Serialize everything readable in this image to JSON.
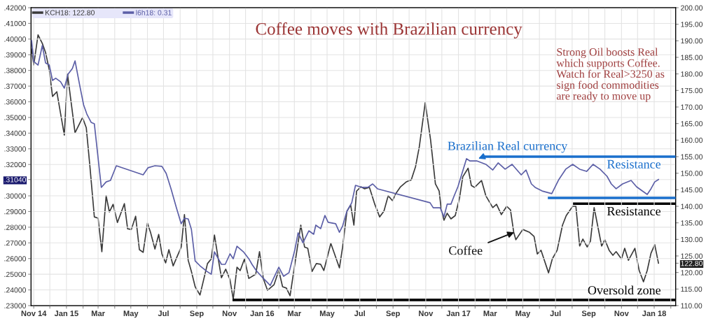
{
  "chart_data": {
    "type": "line",
    "title": "Coffee moves with Brazilian currency",
    "annotations": [
      "Strong Oil boosts Real\nwhich supports Coffee.\nWatch for Real>3250 as\nsign food commodities\nare ready to move up",
      {
        "text": "Brazilian Real currency",
        "x": "2017-02-07",
        "y": 0.3237
      },
      {
        "text": "Coffee",
        "x": "2017-04-15",
        "y": 0.2768
      }
    ],
    "xlim": [
      "2014-10-27",
      "2018-02-10"
    ],
    "xticks": [
      {
        "value": "2014-11-01",
        "label": "Nov 14"
      },
      {
        "value": "2014-12-01",
        "label": null
      },
      {
        "value": "2015-01-01",
        "label": "Jan 15"
      },
      {
        "value": "2015-02-01",
        "label": null
      },
      {
        "value": "2015-03-01",
        "label": "Mar"
      },
      {
        "value": "2015-04-01",
        "label": null
      },
      {
        "value": "2015-05-01",
        "label": "May"
      },
      {
        "value": "2015-06-01",
        "label": null
      },
      {
        "value": "2015-07-01",
        "label": "Jul"
      },
      {
        "value": "2015-08-01",
        "label": null
      },
      {
        "value": "2015-09-01",
        "label": "Sep"
      },
      {
        "value": "2015-10-01",
        "label": null
      },
      {
        "value": "2015-11-01",
        "label": "Nov"
      },
      {
        "value": "2015-12-01",
        "label": null
      },
      {
        "value": "2016-01-01",
        "label": "Jan 16"
      },
      {
        "value": "2016-02-01",
        "label": null
      },
      {
        "value": "2016-03-01",
        "label": "Mar"
      },
      {
        "value": "2016-04-01",
        "label": null
      },
      {
        "value": "2016-05-01",
        "label": "May"
      },
      {
        "value": "2016-06-01",
        "label": null
      },
      {
        "value": "2016-07-01",
        "label": "Jul"
      },
      {
        "value": "2016-08-01",
        "label": null
      },
      {
        "value": "2016-09-01",
        "label": "Sep"
      },
      {
        "value": "2016-10-01",
        "label": null
      },
      {
        "value": "2016-11-01",
        "label": "Nov"
      },
      {
        "value": "2016-12-01",
        "label": null
      },
      {
        "value": "2017-01-01",
        "label": "Jan 17"
      },
      {
        "value": "2017-02-01",
        "label": null
      },
      {
        "value": "2017-03-01",
        "label": "Mar"
      },
      {
        "value": "2017-04-01",
        "label": null
      },
      {
        "value": "2017-05-01",
        "label": "May"
      },
      {
        "value": "2017-06-01",
        "label": null
      },
      {
        "value": "2017-07-01",
        "label": "Jul"
      },
      {
        "value": "2017-08-01",
        "label": null
      },
      {
        "value": "2017-09-01",
        "label": "Sep"
      },
      {
        "value": "2017-10-01",
        "label": null
      },
      {
        "value": "2017-11-01",
        "label": "Nov"
      },
      {
        "value": "2017-12-01",
        "label": null
      },
      {
        "value": "2018-01-01",
        "label": "Jan 18"
      },
      {
        "value": "2018-02-01",
        "label": null
      }
    ],
    "ylim": [
      0.23,
      0.42
    ],
    "yticks": [
      {
        "value": 0.23,
        "label": ".23000"
      },
      {
        "value": 0.24,
        "label": ".24000"
      },
      {
        "value": 0.25,
        "label": ".25000"
      },
      {
        "value": 0.26,
        "label": ".26000"
      },
      {
        "value": 0.27,
        "label": ".27000"
      },
      {
        "value": 0.28,
        "label": ".28000"
      },
      {
        "value": 0.29,
        "label": ".29000"
      },
      {
        "value": 0.3,
        "label": ".30000"
      },
      {
        "value": 0.3104,
        "label": ".31040"
      },
      {
        "value": 0.32,
        "label": ".32000"
      },
      {
        "value": 0.33,
        "label": ".33000"
      },
      {
        "value": 0.34,
        "label": ".34000"
      },
      {
        "value": 0.35,
        "label": ".35000"
      },
      {
        "value": 0.36,
        "label": ".36000"
      },
      {
        "value": 0.37,
        "label": ".37000"
      },
      {
        "value": 0.38,
        "label": ".38000"
      },
      {
        "value": 0.39,
        "label": ".39000"
      },
      {
        "value": 0.4,
        "label": ".40000"
      },
      {
        "value": 0.41,
        "label": ".41000"
      },
      {
        "value": 0.42,
        "label": ".42000"
      }
    ],
    "y2lim": [
      110,
      200
    ],
    "y2ticks": [
      {
        "value": 110,
        "label": "110.00"
      },
      {
        "value": 115,
        "label": "115.00"
      },
      {
        "value": 120,
        "label": "120.00"
      },
      {
        "value": 122.8,
        "label": "122.80"
      },
      {
        "value": 125,
        "label": "125.00"
      },
      {
        "value": 130,
        "label": "130.00"
      },
      {
        "value": 135,
        "label": "135.00"
      },
      {
        "value": 140,
        "label": "140.00"
      },
      {
        "value": 145,
        "label": "145.00"
      },
      {
        "value": 150,
        "label": "150.00"
      },
      {
        "value": 155,
        "label": "155.00"
      },
      {
        "value": 160,
        "label": "160.00"
      },
      {
        "value": 165,
        "label": "165.00"
      },
      {
        "value": 170,
        "label": "170.00"
      },
      {
        "value": 175,
        "label": "175.00"
      },
      {
        "value": 180,
        "label": "180.00"
      },
      {
        "value": 185,
        "label": "185.00"
      },
      {
        "value": 190,
        "label": "190.00"
      },
      {
        "value": 195,
        "label": "195.00"
      },
      {
        "value": 200,
        "label": "200.00"
      }
    ],
    "grid": true,
    "legend": "top left",
    "series": [
      {
        "name": "KCH18: 122.80",
        "type": "line",
        "axis": "y2",
        "color": "#3a3a3a",
        "x": [
          "2014-10-28",
          "2014-11-01",
          "2014-11-09",
          "2014-11-17",
          "2014-11-23",
          "2014-11-30",
          "2014-12-06",
          "2014-12-14",
          "2014-12-28",
          "2015-01-03",
          "2015-01-17",
          "2015-01-31",
          "2015-02-07",
          "2015-02-14",
          "2015-02-22",
          "2015-03-01",
          "2015-03-08",
          "2015-03-16",
          "2015-03-22",
          "2015-03-29",
          "2015-04-06",
          "2015-04-19",
          "2015-04-25",
          "2015-05-02",
          "2015-05-10",
          "2015-05-17",
          "2015-05-24",
          "2015-06-01",
          "2015-06-07",
          "2015-06-15",
          "2015-06-22",
          "2015-06-28",
          "2015-07-05",
          "2015-07-11",
          "2015-07-19",
          "2015-08-03",
          "2015-08-09",
          "2015-08-16",
          "2015-08-22",
          "2015-08-29",
          "2015-09-07",
          "2015-09-21",
          "2015-09-28",
          "2015-10-04",
          "2015-10-10",
          "2015-10-17",
          "2015-10-25",
          "2015-11-02",
          "2015-11-08",
          "2015-11-15",
          "2015-11-21",
          "2015-11-29",
          "2015-12-07",
          "2015-12-20",
          "2015-12-27",
          "2016-01-03",
          "2016-01-11",
          "2016-01-23",
          "2016-02-01",
          "2016-02-08",
          "2016-02-15",
          "2016-02-22",
          "2016-03-02",
          "2016-03-13",
          "2016-03-20",
          "2016-03-26",
          "2016-04-03",
          "2016-04-11",
          "2016-04-19",
          "2016-04-25",
          "2016-05-08",
          "2016-05-24",
          "2016-05-30",
          "2016-06-07",
          "2016-06-14",
          "2016-06-20",
          "2016-06-25",
          "2016-07-03",
          "2016-07-10",
          "2016-07-19",
          "2016-07-29",
          "2016-08-07",
          "2016-08-15",
          "2016-08-23",
          "2016-08-31",
          "2016-09-06",
          "2016-09-15",
          "2016-09-26",
          "2016-10-05",
          "2016-10-13",
          "2016-10-20",
          "2016-10-31",
          "2016-11-10",
          "2016-11-19",
          "2016-11-26",
          "2016-11-30",
          "2016-12-05",
          "2016-12-11",
          "2016-12-18",
          "2016-12-26",
          "2017-01-03",
          "2017-01-09",
          "2017-01-19",
          "2017-01-25",
          "2017-01-31",
          "2017-02-13",
          "2017-02-21",
          "2017-03-06",
          "2017-03-13",
          "2017-03-22",
          "2017-04-01",
          "2017-04-08",
          "2017-04-14",
          "2017-04-18",
          "2017-05-01",
          "2017-05-13",
          "2017-05-22",
          "2017-05-28",
          "2017-06-04",
          "2017-06-18",
          "2017-06-25",
          "2017-07-04",
          "2017-07-14",
          "2017-07-21",
          "2017-08-02",
          "2017-08-08",
          "2017-08-15",
          "2017-08-21",
          "2017-08-29",
          "2017-09-04",
          "2017-09-11",
          "2017-09-25",
          "2017-10-01",
          "2017-10-09",
          "2017-10-16",
          "2017-10-22",
          "2017-11-01",
          "2017-11-07",
          "2017-11-14",
          "2017-11-26",
          "2017-12-04",
          "2017-12-12",
          "2017-12-19",
          "2017-12-26",
          "2018-01-02",
          "2018-01-09"
        ],
        "values": [
          187.5,
          182.7,
          191.8,
          189.2,
          186.5,
          181.2,
          173.2,
          174.6,
          161.5,
          179.9,
          162.2,
          166.8,
          163.7,
          151.6,
          136.8,
          136.4,
          126.3,
          143.2,
          138.3,
          140.6,
          135.1,
          140.8,
          133.2,
          133.0,
          137.0,
          126.9,
          126.1,
          134.9,
          132.0,
          127.1,
          131.5,
          125.6,
          122.9,
          126.9,
          122.0,
          127.7,
          137.5,
          123.7,
          120.3,
          115.7,
          113.2,
          122.7,
          124.1,
          131.3,
          125.2,
          118.4,
          121.0,
          117.8,
          111.9,
          121.6,
          120.6,
          124.1,
          118.2,
          119.5,
          126.3,
          118.2,
          114.6,
          116.3,
          120.6,
          115.7,
          115.3,
          113.0,
          122.7,
          134.3,
          127.7,
          127.3,
          120.3,
          122.7,
          122.5,
          120.6,
          128.8,
          121.4,
          127.7,
          138.5,
          140.4,
          134.3,
          144.6,
          145.9,
          145.3,
          145.7,
          140.6,
          136.8,
          138.5,
          143.2,
          141.7,
          143.8,
          145.9,
          147.4,
          148.0,
          152.0,
          158.0,
          171.3,
          160.1,
          146.8,
          144.6,
          138.9,
          135.8,
          137.9,
          136.2,
          137.2,
          142.5,
          148.9,
          151.5,
          146.3,
          145.7,
          147.8,
          143.2,
          139.6,
          140.6,
          137.5,
          140.0,
          138.9,
          132.2,
          129.9,
          133.0,
          132.2,
          130.9,
          125.6,
          126.7,
          119.9,
          124.1,
          126.7,
          134.3,
          137.2,
          140.0,
          140.0,
          128.0,
          130.1,
          127.7,
          129.4,
          139.6,
          128.0,
          129.9,
          126.7,
          125.2,
          126.3,
          124.1,
          127.3,
          123.7,
          127.3,
          120.6,
          117.2,
          120.6,
          125.8,
          128.4,
          122.8
        ]
      },
      {
        "name": "l6h18: 0.31",
        "type": "line",
        "color": "#5b5ea6",
        "x": [
          "2014-10-28",
          "2014-11-01",
          "2014-11-09",
          "2014-11-17",
          "2014-11-23",
          "2014-11-30",
          "2014-12-06",
          "2014-12-12",
          "2014-12-21",
          "2014-12-28",
          "2015-01-04",
          "2015-01-12",
          "2015-01-17",
          "2015-01-26",
          "2015-02-02",
          "2015-02-08",
          "2015-02-16",
          "2015-02-22",
          "2015-03-07",
          "2015-03-16",
          "2015-03-24",
          "2015-04-04",
          "2015-05-24",
          "2015-06-02",
          "2015-06-15",
          "2015-06-28",
          "2015-07-06",
          "2015-07-15",
          "2015-07-25",
          "2015-08-03",
          "2015-08-09",
          "2015-08-16",
          "2015-08-22",
          "2015-08-29",
          "2015-09-07",
          "2015-09-20",
          "2015-09-28",
          "2015-10-04",
          "2015-10-17",
          "2015-10-24",
          "2015-11-02",
          "2015-11-08",
          "2015-11-15",
          "2015-11-27",
          "2015-12-07",
          "2015-12-13",
          "2015-12-21",
          "2016-01-03",
          "2016-01-16",
          "2016-02-01",
          "2016-02-10",
          "2016-02-20",
          "2016-03-02",
          "2016-03-08",
          "2016-03-17",
          "2016-03-28",
          "2016-04-06",
          "2016-04-10",
          "2016-04-19",
          "2016-04-27",
          "2016-05-03",
          "2016-05-17",
          "2016-05-24",
          "2016-05-30",
          "2016-06-07",
          "2016-06-16",
          "2016-06-23",
          "2016-07-05",
          "2016-07-16",
          "2016-07-25",
          "2016-08-03",
          "2016-11-09",
          "2016-11-15",
          "2016-11-28",
          "2016-12-05",
          "2016-12-11",
          "2016-12-18",
          "2016-12-24",
          "2016-12-31",
          "2017-01-16",
          "2017-01-22",
          "2017-02-04",
          "2017-02-21",
          "2017-03-06",
          "2017-03-16",
          "2017-03-29",
          "2017-04-11",
          "2017-04-28",
          "2017-05-07",
          "2017-05-17",
          "2017-05-24",
          "2017-06-06",
          "2017-06-24",
          "2017-07-07",
          "2017-07-20",
          "2017-08-02",
          "2017-08-15",
          "2017-08-28",
          "2017-09-09",
          "2017-09-22",
          "2017-10-05",
          "2017-10-13",
          "2017-10-22",
          "2017-11-03",
          "2017-11-19",
          "2017-11-29",
          "2017-12-08",
          "2017-12-19",
          "2017-12-26",
          "2018-01-02",
          "2018-01-09"
        ],
        "values": [
          0.399,
          0.3857,
          0.3834,
          0.3959,
          0.3848,
          0.3834,
          0.3736,
          0.375,
          0.3728,
          0.3687,
          0.3776,
          0.3812,
          0.3861,
          0.37,
          0.358,
          0.3522,
          0.3469,
          0.346,
          0.3054,
          0.3089,
          0.3098,
          0.3192,
          0.3134,
          0.3179,
          0.3192,
          0.3188,
          0.3143,
          0.3045,
          0.2924,
          0.2822,
          0.2857,
          0.2853,
          0.2786,
          0.2585,
          0.2554,
          0.2518,
          0.25,
          0.2643,
          0.2563,
          0.2563,
          0.263,
          0.2599,
          0.2679,
          0.2643,
          0.2599,
          0.2563,
          0.2523,
          0.2474,
          0.2429,
          0.2545,
          0.2487,
          0.251,
          0.2657,
          0.2764,
          0.2701,
          0.2777,
          0.2755,
          0.2813,
          0.2791,
          0.2875,
          0.2831,
          0.2822,
          0.2768,
          0.2808,
          0.2902,
          0.2956,
          0.3067,
          0.3054,
          0.3054,
          0.3076,
          0.3045,
          0.2956,
          0.2924,
          0.2924,
          0.2866,
          0.2947,
          0.2947,
          0.3,
          0.3058,
          0.3237,
          0.3223,
          0.3223,
          0.3201,
          0.3165,
          0.321,
          0.317,
          0.3201,
          0.3134,
          0.3165,
          0.3076,
          0.3054,
          0.3031,
          0.3014,
          0.3103,
          0.317,
          0.3201,
          0.317,
          0.3156,
          0.3201,
          0.317,
          0.3125,
          0.3076,
          0.3045,
          0.3076,
          0.3098,
          0.3058,
          0.3036,
          0.3009,
          0.3045,
          0.3089,
          0.3104
        ]
      },
      {
        "name": "Resistance",
        "type": "line",
        "color": "#1a6fcc",
        "x": [
          "2017-02-19",
          "2018-02-08"
        ],
        "values": [
          0.325,
          0.325
        ]
      },
      {
        "type": "line",
        "color": "#1a6fcc",
        "x": [
          "2017-06-19",
          "2018-02-08"
        ],
        "values": [
          0.2987,
          0.2987
        ]
      },
      {
        "name": "Resistance",
        "type": "line",
        "axis": "y2",
        "color": "#000000",
        "x": [
          "2017-08-05",
          "2018-02-08"
        ],
        "values": [
          140.8,
          140.8
        ]
      },
      {
        "name": "Oversold zone",
        "type": "line",
        "axis": "y2",
        "color": "#000000",
        "x": [
          "2015-11-09",
          "2018-02-08"
        ],
        "values": [
          111.7,
          111.7
        ]
      }
    ]
  }
}
